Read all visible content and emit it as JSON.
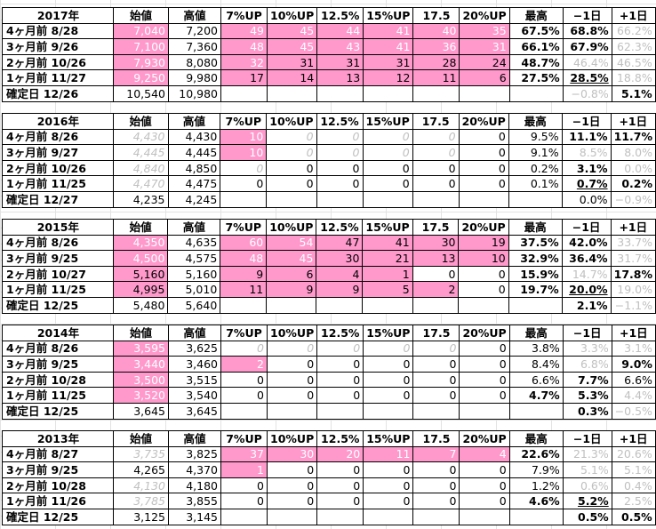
{
  "headers": [
    "始値",
    "高値",
    "7%UP",
    "10%UP",
    "12.5%",
    "15%UP",
    "17.5",
    "20%UP",
    "最高",
    "−1日",
    "+1日"
  ],
  "blocks": [
    {
      "year": "2017年",
      "rows": [
        {
          "label": "4ヶ月前  8/28",
          "open": "7,040",
          "high": "7,200",
          "up": [
            "49",
            "45",
            "44",
            "41",
            "40",
            "35"
          ],
          "max": "67.5%",
          "m1": "68.8%",
          "p1": "66.2%"
        },
        {
          "label": "3ヶ月前  9/26",
          "open": "7,100",
          "high": "7,360",
          "up": [
            "48",
            "45",
            "43",
            "41",
            "36",
            "31"
          ],
          "max": "66.1%",
          "m1": "67.9%",
          "p1": "62.3%"
        },
        {
          "label": "2ヶ月前  10/26",
          "open": "7,930",
          "high": "8,080",
          "up": [
            "32",
            "31",
            "31",
            "31",
            "28",
            "24"
          ],
          "max": "48.7%",
          "m1": "46.4%",
          "p1": "46.5%"
        },
        {
          "label": "1ヶ月前  11/27",
          "open": "9,250",
          "high": "9,980",
          "up": [
            "17",
            "14",
            "13",
            "12",
            "11",
            "6"
          ],
          "max": "27.5%",
          "m1": "28.5%",
          "p1": "18.8%"
        }
      ],
      "confirm": {
        "label": "確定日  12/26",
        "open": "10,540",
        "high": "10,980",
        "m1": "−0.8%",
        "p1": "5.1%"
      }
    },
    {
      "year": "2016年",
      "rows": [
        {
          "label": "4ヶ月前  8/26",
          "open": "4,430",
          "high": "4,430",
          "up": [
            "10",
            "0",
            "0",
            "0",
            "0",
            "0"
          ],
          "max": "9.5%",
          "m1": "11.1%",
          "p1": "11.7%"
        },
        {
          "label": "3ヶ月前  9/27",
          "open": "4,445",
          "high": "4,445",
          "up": [
            "10",
            "0",
            "0",
            "0",
            "0",
            "0"
          ],
          "max": "9.1%",
          "m1": "8.5%",
          "p1": "8.0%"
        },
        {
          "label": "2ヶ月前  10/26",
          "open": "4,840",
          "high": "4,850",
          "up": [
            "0",
            "0",
            "0",
            "0",
            "0",
            "0"
          ],
          "max": "0.2%",
          "m1": "3.1%",
          "p1": "0.0%"
        },
        {
          "label": "1ヶ月前  11/25",
          "open": "4,470",
          "high": "4,475",
          "up": [
            "0",
            "0",
            "0",
            "0",
            "0",
            "0"
          ],
          "max": "0.1%",
          "m1": "0.7%",
          "p1": "0.2%"
        }
      ],
      "confirm": {
        "label": "確定日  12/27",
        "open": "4,235",
        "high": "4,245",
        "m1": "0.0%",
        "p1": "−0.9%"
      }
    },
    {
      "year": "2015年",
      "rows": [
        {
          "label": "4ヶ月前  8/26",
          "open": "4,350",
          "high": "4,635",
          "up": [
            "60",
            "54",
            "47",
            "41",
            "30",
            "19"
          ],
          "max": "37.5%",
          "m1": "42.0%",
          "p1": "33.7%"
        },
        {
          "label": "3ヶ月前  9/25",
          "open": "4,500",
          "high": "4,575",
          "up": [
            "48",
            "45",
            "30",
            "21",
            "13",
            "10"
          ],
          "max": "32.9%",
          "m1": "36.4%",
          "p1": "31.7%"
        },
        {
          "label": "2ヶ月前  10/27",
          "open": "5,160",
          "high": "5,160",
          "up": [
            "9",
            "6",
            "4",
            "1",
            "0",
            "0"
          ],
          "max": "15.9%",
          "m1": "14.7%",
          "p1": "17.8%"
        },
        {
          "label": "1ヶ月前  11/25",
          "open": "4,995",
          "high": "5,010",
          "up": [
            "11",
            "9",
            "9",
            "5",
            "2",
            "0"
          ],
          "max": "19.7%",
          "m1": "20.0%",
          "p1": "19.0%"
        }
      ],
      "confirm": {
        "label": "確定日  12/25",
        "open": "5,480",
        "high": "5,640",
        "m1": "2.1%",
        "p1": "−1.1%"
      }
    },
    {
      "year": "2014年",
      "rows": [
        {
          "label": "4ヶ月前  8/26",
          "open": "3,595",
          "high": "3,625",
          "up": [
            "0",
            "0",
            "0",
            "0",
            "0",
            "0"
          ],
          "max": "3.8%",
          "m1": "3.3%",
          "p1": "3.1%"
        },
        {
          "label": "3ヶ月前  9/25",
          "open": "3,440",
          "high": "3,460",
          "up": [
            "2",
            "0",
            "0",
            "0",
            "0",
            "0"
          ],
          "max": "8.4%",
          "m1": "6.8%",
          "p1": "9.0%"
        },
        {
          "label": "2ヶ月前  10/28",
          "open": "3,500",
          "high": "3,515",
          "up": [
            "0",
            "0",
            "0",
            "0",
            "0",
            "0"
          ],
          "max": "6.6%",
          "m1": "7.7%",
          "p1": "6.6%"
        },
        {
          "label": "1ヶ月前  11/25",
          "open": "3,520",
          "high": "3,540",
          "up": [
            "0",
            "0",
            "0",
            "0",
            "0",
            "0"
          ],
          "max": "4.7%",
          "m1": "5.3%",
          "p1": "4.4%"
        }
      ],
      "confirm": {
        "label": "確定日  12/25",
        "open": "3,645",
        "high": "3,645",
        "m1": "0.3%",
        "p1": "−0.5%"
      }
    },
    {
      "year": "2013年",
      "rows": [
        {
          "label": "4ヶ月前  8/27",
          "open": "3,735",
          "high": "3,825",
          "up": [
            "37",
            "30",
            "20",
            "11",
            "7",
            "4"
          ],
          "max": "22.6%",
          "m1": "21.3%",
          "p1": "20.6%"
        },
        {
          "label": "3ヶ月前  9/25",
          "open": "4,265",
          "high": "4,370",
          "up": [
            "1",
            "0",
            "0",
            "0",
            "0",
            "0"
          ],
          "max": "7.9%",
          "m1": "5.1%",
          "p1": "5.1%"
        },
        {
          "label": "2ヶ月前  10/28",
          "open": "4,130",
          "high": "4,180",
          "up": [
            "0",
            "0",
            "0",
            "0",
            "0",
            "0"
          ],
          "max": "1.2%",
          "m1": "0.6%",
          "p1": "0.4%"
        },
        {
          "label": "1ヶ月前  11/26",
          "open": "3,785",
          "high": "3,855",
          "up": [
            "0",
            "0",
            "0",
            "0",
            "0",
            "0"
          ],
          "max": "4.6%",
          "m1": "5.2%",
          "p1": "2.5%"
        }
      ],
      "confirm": {
        "label": "確定日  12/25",
        "open": "3,125",
        "high": "3,145",
        "m1": "0.5%",
        "p1": "0.5%"
      }
    }
  ],
  "colors": {
    "highlight": "#ff99cc",
    "faded": "#c0c0c0"
  }
}
